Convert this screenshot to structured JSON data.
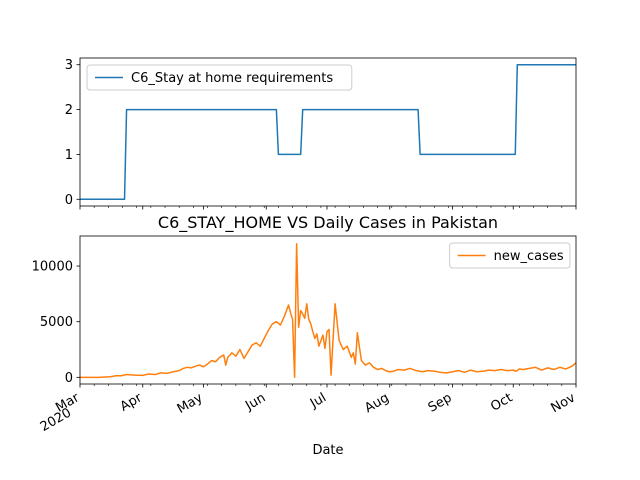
{
  "chart_data": [
    {
      "type": "line",
      "title": "",
      "xlabel": "",
      "ylabel": "",
      "x_range": [
        "2020-03-01",
        "2020-11-01"
      ],
      "ylim": [
        -0.15,
        3.15
      ],
      "y_ticks": [
        0,
        1,
        2,
        3
      ],
      "grid": false,
      "legend_position": "upper-left",
      "x_tick_labels_shown": false,
      "series": [
        {
          "name": "C6_Stay at home requirements",
          "color": "#1f77b4",
          "step": true,
          "x": [
            "2020-03-01",
            "2020-03-23",
            "2020-03-24",
            "2020-06-06",
            "2020-06-07",
            "2020-06-18",
            "2020-06-19",
            "2020-08-15",
            "2020-08-16",
            "2020-10-02",
            "2020-10-03",
            "2020-11-01"
          ],
          "y": [
            0,
            0,
            2,
            2,
            1,
            1,
            2,
            2,
            1,
            1,
            3,
            3
          ]
        }
      ]
    },
    {
      "type": "line",
      "title": "C6_STAY_HOME VS Daily Cases in Pakistan",
      "xlabel": "Date",
      "ylabel": "",
      "x_range": [
        "2020-03-01",
        "2020-11-01"
      ],
      "ylim": [
        -600,
        12700
      ],
      "y_ticks": [
        0,
        5000,
        10000
      ],
      "y_tick_labels": [
        "0",
        "5000",
        "10000"
      ],
      "x_ticks": [
        {
          "date": "2020-03-01",
          "label": "Mar",
          "year": "2020"
        },
        {
          "date": "2020-04-01",
          "label": "Apr"
        },
        {
          "date": "2020-05-01",
          "label": "May"
        },
        {
          "date": "2020-06-01",
          "label": "Jun"
        },
        {
          "date": "2020-07-01",
          "label": "Jul"
        },
        {
          "date": "2020-08-01",
          "label": "Aug"
        },
        {
          "date": "2020-09-01",
          "label": "Sep"
        },
        {
          "date": "2020-10-01",
          "label": "Oct"
        },
        {
          "date": "2020-11-01",
          "label": "Nov"
        }
      ],
      "grid": false,
      "legend_position": "upper-right",
      "series": [
        {
          "name": "new_cases",
          "color": "#ff7f0e",
          "x": [
            "2020-03-01",
            "2020-03-10",
            "2020-03-16",
            "2020-03-19",
            "2020-03-21",
            "2020-03-24",
            "2020-03-28",
            "2020-04-01",
            "2020-04-04",
            "2020-04-07",
            "2020-04-10",
            "2020-04-13",
            "2020-04-16",
            "2020-04-19",
            "2020-04-21",
            "2020-04-23",
            "2020-04-25",
            "2020-04-27",
            "2020-04-29",
            "2020-05-01",
            "2020-05-03",
            "2020-05-05",
            "2020-05-07",
            "2020-05-09",
            "2020-05-11",
            "2020-05-12",
            "2020-05-13",
            "2020-05-15",
            "2020-05-17",
            "2020-05-19",
            "2020-05-21",
            "2020-05-23",
            "2020-05-25",
            "2020-05-27",
            "2020-05-29",
            "2020-05-31",
            "2020-06-02",
            "2020-06-04",
            "2020-06-06",
            "2020-06-08",
            "2020-06-10",
            "2020-06-11",
            "2020-06-12",
            "2020-06-13",
            "2020-06-14",
            "2020-06-15",
            "2020-06-16",
            "2020-06-17",
            "2020-06-18",
            "2020-06-19",
            "2020-06-20",
            "2020-06-21",
            "2020-06-22",
            "2020-06-23",
            "2020-06-24",
            "2020-06-25",
            "2020-06-26",
            "2020-06-27",
            "2020-06-28",
            "2020-06-29",
            "2020-06-30",
            "2020-07-01",
            "2020-07-02",
            "2020-07-03",
            "2020-07-05",
            "2020-07-07",
            "2020-07-09",
            "2020-07-11",
            "2020-07-13",
            "2020-07-14",
            "2020-07-15",
            "2020-07-16",
            "2020-07-18",
            "2020-07-20",
            "2020-07-22",
            "2020-07-24",
            "2020-07-26",
            "2020-07-28",
            "2020-07-30",
            "2020-08-01",
            "2020-08-03",
            "2020-08-05",
            "2020-08-08",
            "2020-08-11",
            "2020-08-14",
            "2020-08-17",
            "2020-08-20",
            "2020-08-23",
            "2020-08-26",
            "2020-08-29",
            "2020-09-01",
            "2020-09-04",
            "2020-09-07",
            "2020-09-10",
            "2020-09-13",
            "2020-09-16",
            "2020-09-19",
            "2020-09-22",
            "2020-09-25",
            "2020-09-28",
            "2020-10-01",
            "2020-10-02",
            "2020-10-03",
            "2020-10-04",
            "2020-10-06",
            "2020-10-09",
            "2020-10-12",
            "2020-10-15",
            "2020-10-18",
            "2020-10-21",
            "2020-10-24",
            "2020-10-27",
            "2020-10-30",
            "2020-11-01"
          ],
          "y": [
            0,
            0,
            50,
            150,
            130,
            250,
            200,
            180,
            300,
            250,
            400,
            350,
            500,
            600,
            800,
            900,
            850,
            1000,
            1100,
            950,
            1200,
            1500,
            1400,
            1800,
            2000,
            1100,
            1800,
            2200,
            1900,
            2500,
            1700,
            2300,
            2900,
            3100,
            2800,
            3500,
            4200,
            4800,
            5000,
            4700,
            5500,
            6000,
            6500,
            5800,
            5200,
            0,
            12000,
            4500,
            6000,
            5700,
            5300,
            6600,
            5200,
            4800,
            4100,
            3500,
            3900,
            2800,
            3300,
            3800,
            2600,
            4100,
            4300,
            200,
            6600,
            3300,
            2500,
            2800,
            1800,
            2200,
            1200,
            4000,
            1500,
            1100,
            1300,
            900,
            700,
            800,
            600,
            500,
            550,
            700,
            650,
            800,
            600,
            500,
            600,
            550,
            450,
            400,
            500,
            600,
            450,
            650,
            500,
            550,
            650,
            600,
            700,
            600,
            650,
            550,
            600,
            750,
            700,
            800,
            900,
            650,
            850,
            700,
            900,
            750,
            1000,
            1300
          ]
        }
      ]
    }
  ]
}
